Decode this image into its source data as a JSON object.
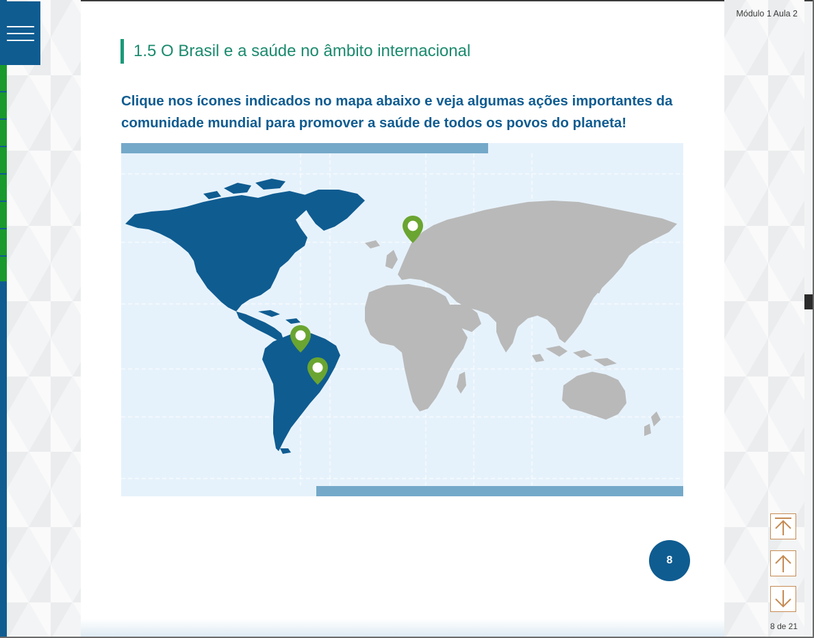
{
  "header": {
    "breadcrumb": "Módulo 1 Aula 2"
  },
  "section": {
    "title": "1.5 O Brasil e a saúde no âmbito internacional",
    "intro": "Clique nos ícones indicados no mapa abaixo e veja algumas ações importantes da comunidade mundial para promover a saúde de todos os povos do planeta!"
  },
  "map": {
    "highlight_region": "Americas",
    "pins": [
      {
        "name": "europe-pin"
      },
      {
        "name": "amazon-pin"
      },
      {
        "name": "brasilia-pin"
      }
    ]
  },
  "page": {
    "number": "8",
    "counter": "8 de 21"
  },
  "navigation": {
    "icons": [
      "arrow-top-icon",
      "arrow-up-icon",
      "arrow-down-icon"
    ]
  },
  "colors": {
    "primary_blue": "#0f5c91",
    "title_green": "#1b8a6e",
    "accent_green": "#1b9a79",
    "pin_green": "#6aa531",
    "land_gray": "#b9b9b9",
    "ocean": "#e6f2fb",
    "nav_orange": "#c58a52",
    "progress_green": "#1a9a2c"
  }
}
